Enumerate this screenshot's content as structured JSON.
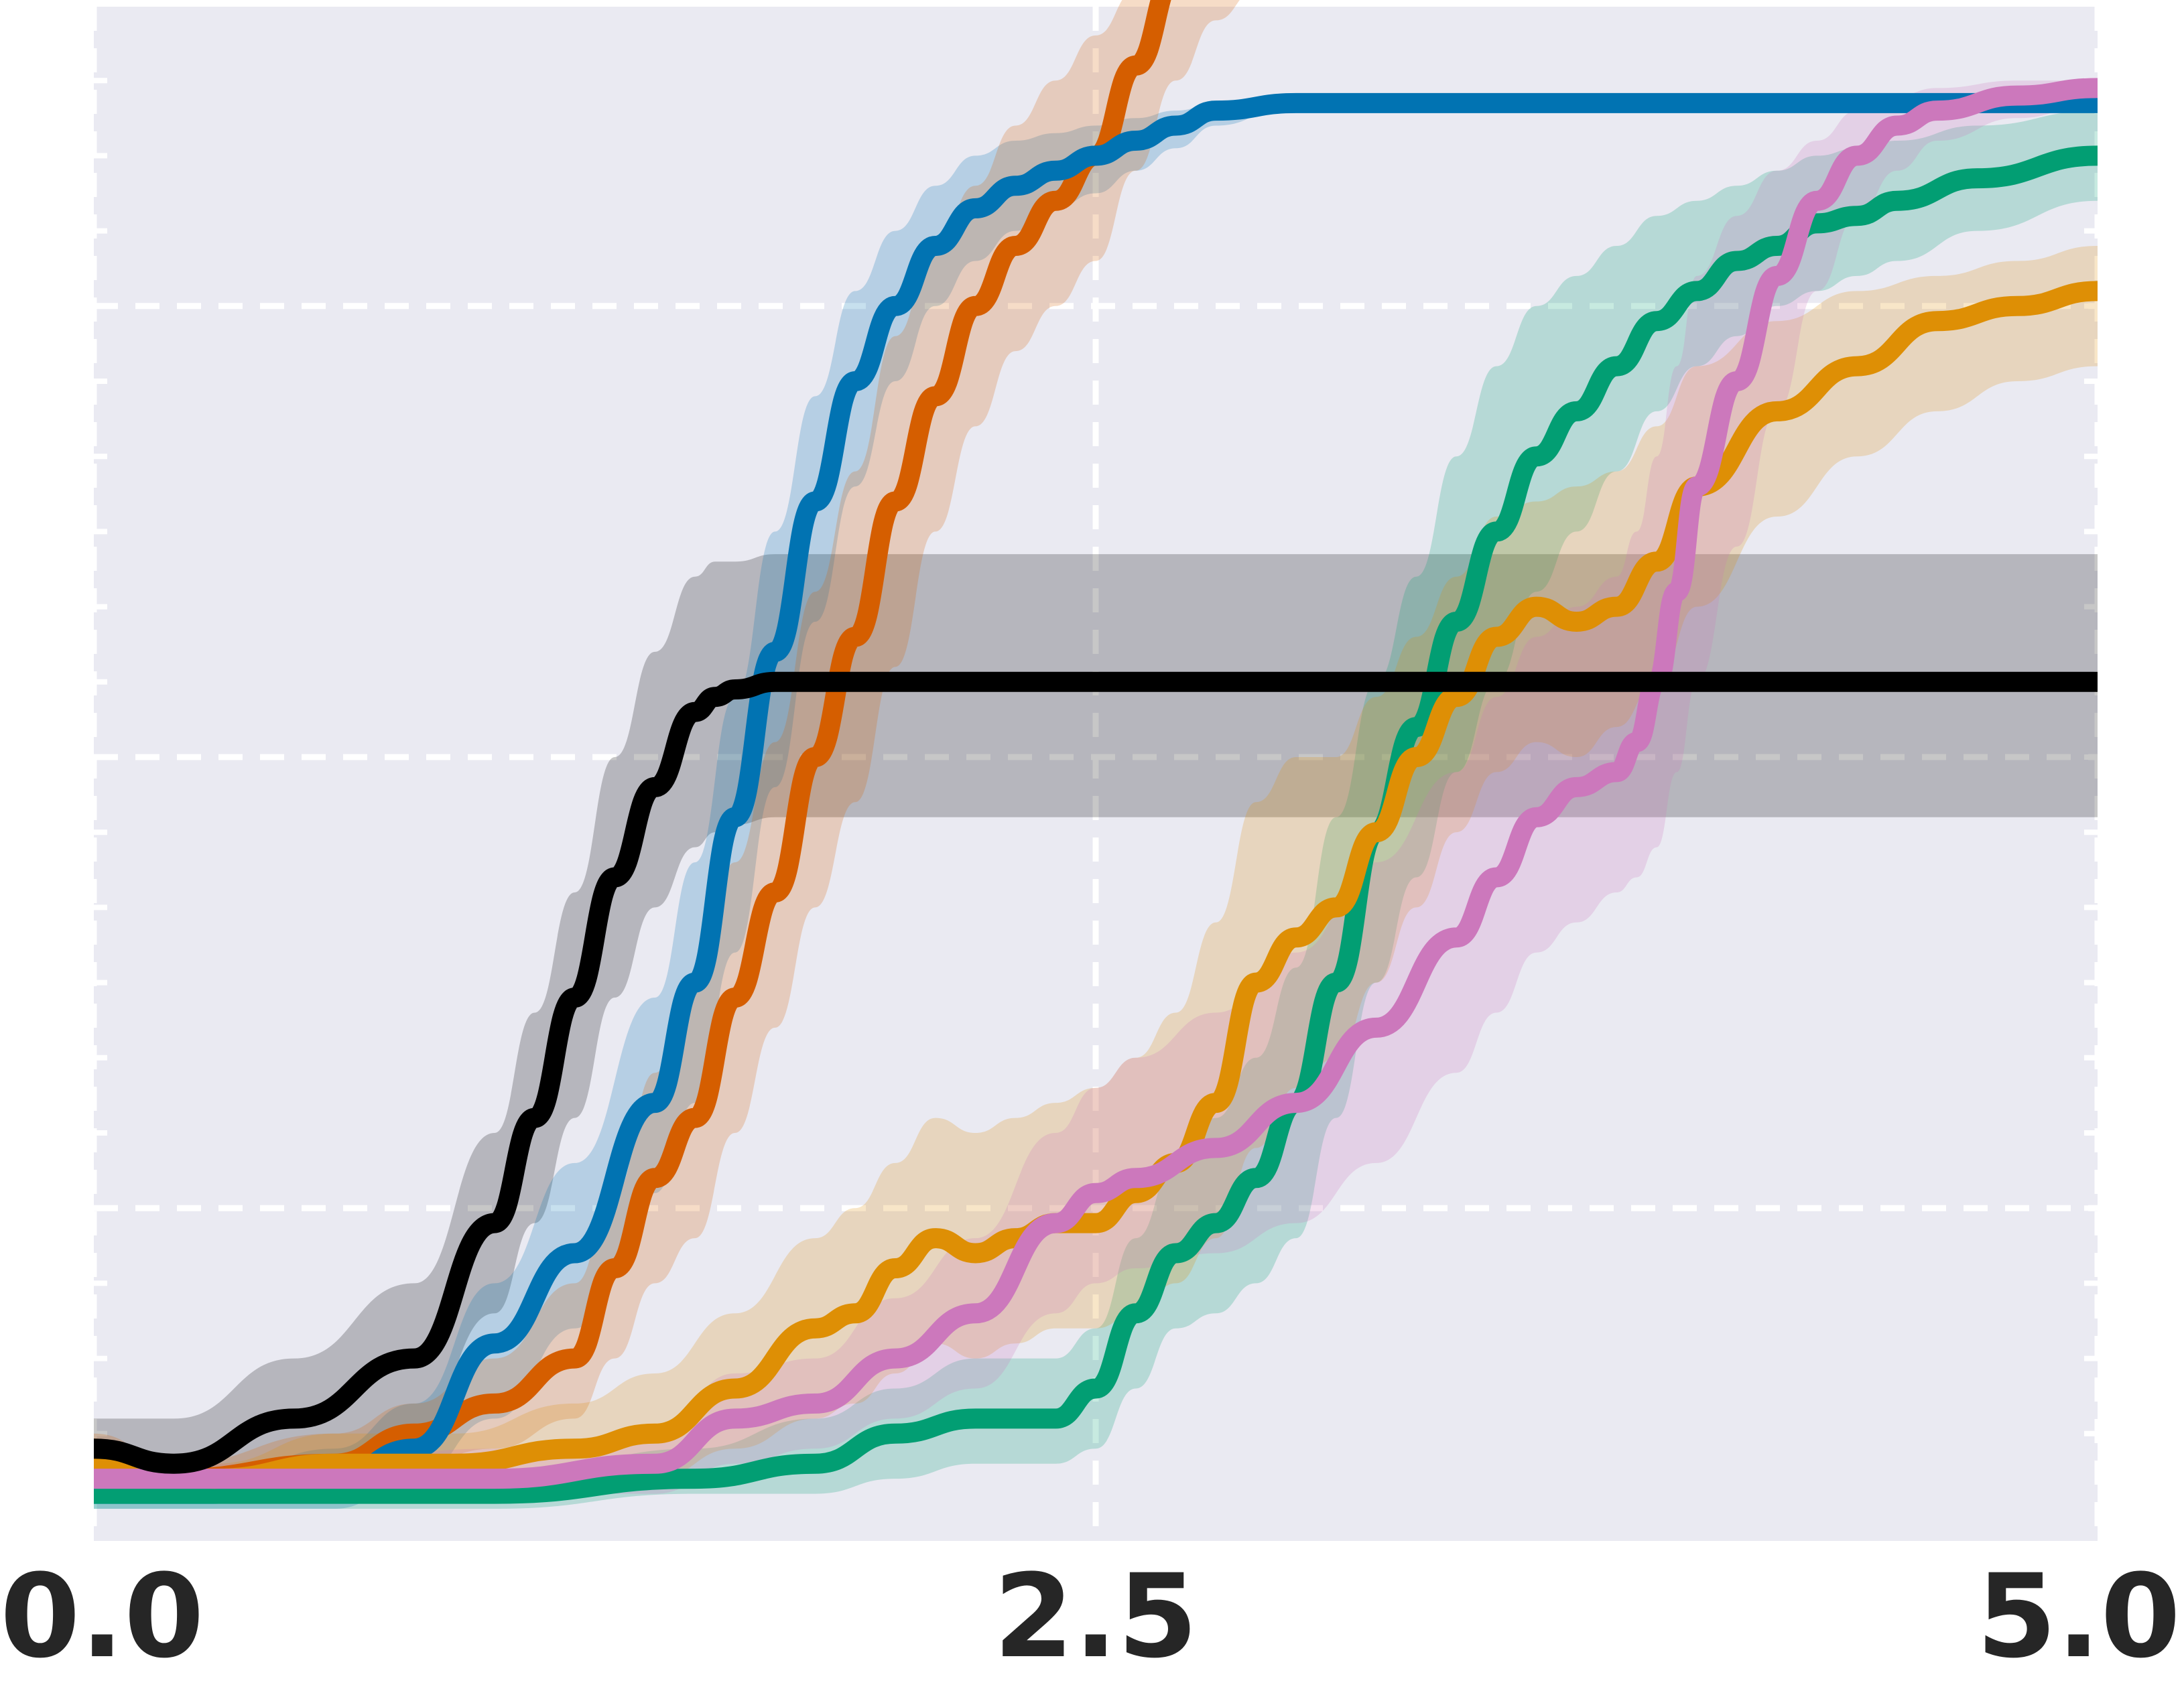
{
  "chart_data": {
    "type": "line",
    "title": "",
    "xlabel": "",
    "ylabel": "",
    "xlim": [
      0.0,
      5.0
    ],
    "ylim": [
      0.0,
      1.0
    ],
    "x_ticks": [
      0.0,
      2.5,
      5.0
    ],
    "x_tick_labels": [
      "0.0",
      "2.5",
      "5.0"
    ],
    "y_gridlines": [
      0.2,
      0.5,
      0.8
    ],
    "grid": true,
    "background": "#eaeaf2",
    "series": [
      {
        "color": "#000000",
        "x": [
          0.0,
          0.2,
          0.5,
          0.8,
          1.0,
          1.1,
          1.2,
          1.3,
          1.4,
          1.5,
          1.55,
          1.6,
          1.7,
          1.8,
          2.0,
          2.5,
          3.0,
          3.5,
          4.0,
          4.5,
          5.0
        ],
        "y": [
          0.04,
          0.03,
          0.06,
          0.1,
          0.19,
          0.26,
          0.34,
          0.42,
          0.48,
          0.53,
          0.54,
          0.545,
          0.55,
          0.55,
          0.55,
          0.55,
          0.55,
          0.55,
          0.55,
          0.55,
          0.55
        ],
        "upper": [
          0.06,
          0.06,
          0.1,
          0.15,
          0.25,
          0.33,
          0.41,
          0.5,
          0.57,
          0.62,
          0.63,
          0.63,
          0.635,
          0.635,
          0.635,
          0.635,
          0.635,
          0.635,
          0.635,
          0.635,
          0.635
        ],
        "lower": [
          0.02,
          0.01,
          0.02,
          0.05,
          0.13,
          0.19,
          0.26,
          0.34,
          0.4,
          0.44,
          0.45,
          0.455,
          0.46,
          0.46,
          0.46,
          0.46,
          0.46,
          0.46,
          0.46,
          0.46,
          0.46
        ]
      },
      {
        "color": "#0173b2",
        "x": [
          0.0,
          0.3,
          0.6,
          0.8,
          1.0,
          1.2,
          1.4,
          1.5,
          1.6,
          1.7,
          1.8,
          1.9,
          2.0,
          2.1,
          2.2,
          2.3,
          2.4,
          2.5,
          2.6,
          2.7,
          2.8,
          3.0,
          3.5,
          4.0,
          4.5,
          5.0
        ],
        "y": [
          0.01,
          0.01,
          0.02,
          0.04,
          0.11,
          0.17,
          0.27,
          0.35,
          0.46,
          0.57,
          0.67,
          0.75,
          0.8,
          0.84,
          0.865,
          0.88,
          0.89,
          0.9,
          0.91,
          0.92,
          0.93,
          0.935,
          0.935,
          0.935,
          0.935,
          0.935
        ],
        "upper": [
          0.02,
          0.02,
          0.04,
          0.07,
          0.15,
          0.23,
          0.34,
          0.43,
          0.54,
          0.65,
          0.74,
          0.81,
          0.85,
          0.88,
          0.9,
          0.91,
          0.915,
          0.92,
          0.925,
          0.93,
          0.935,
          0.935,
          0.935,
          0.935,
          0.935,
          0.935
        ],
        "lower": [
          0.0,
          0.0,
          0.0,
          0.02,
          0.06,
          0.12,
          0.21,
          0.27,
          0.37,
          0.48,
          0.59,
          0.68,
          0.75,
          0.8,
          0.83,
          0.85,
          0.865,
          0.875,
          0.89,
          0.905,
          0.92,
          0.935,
          0.935,
          0.935,
          0.935,
          0.935
        ]
      },
      {
        "color": "#d55e00",
        "x": [
          0.0,
          0.2,
          0.6,
          0.8,
          1.0,
          1.2,
          1.3,
          1.4,
          1.5,
          1.6,
          1.7,
          1.8,
          1.9,
          2.0,
          2.1,
          2.2,
          2.3,
          2.4,
          2.5,
          2.6,
          2.7,
          2.8,
          2.9,
          3.0,
          3.2,
          3.5,
          4.0,
          4.5,
          5.0
        ],
        "y": [
          0.04,
          0.02,
          0.03,
          0.05,
          0.07,
          0.1,
          0.16,
          0.22,
          0.26,
          0.34,
          0.41,
          0.5,
          0.58,
          0.67,
          0.74,
          0.8,
          0.84,
          0.87,
          0.9,
          0.96,
          1.02,
          1.04,
          1.05,
          1.06,
          1.07,
          1.07,
          1.08,
          1.09,
          1.09
        ],
        "upper": [
          0.05,
          0.03,
          0.05,
          0.07,
          0.1,
          0.15,
          0.21,
          0.29,
          0.35,
          0.43,
          0.51,
          0.61,
          0.69,
          0.78,
          0.84,
          0.88,
          0.92,
          0.95,
          0.98,
          1.01,
          1.05,
          1.07,
          1.08,
          1.085,
          1.09,
          1.09,
          1.1,
          1.1,
          1.1
        ],
        "lower": [
          0.02,
          0.01,
          0.01,
          0.03,
          0.04,
          0.06,
          0.1,
          0.15,
          0.18,
          0.25,
          0.32,
          0.4,
          0.47,
          0.56,
          0.65,
          0.72,
          0.77,
          0.8,
          0.83,
          0.89,
          0.95,
          0.99,
          1.01,
          1.03,
          1.04,
          1.05,
          1.06,
          1.07,
          1.08
        ]
      },
      {
        "color": "#029e73",
        "x": [
          0.0,
          0.5,
          1.0,
          1.5,
          1.8,
          2.0,
          2.2,
          2.4,
          2.5,
          2.6,
          2.7,
          2.8,
          2.9,
          3.0,
          3.1,
          3.2,
          3.3,
          3.4,
          3.5,
          3.6,
          3.7,
          3.8,
          3.9,
          4.0,
          4.1,
          4.2,
          4.3,
          4.4,
          4.5,
          4.7,
          5.0
        ],
        "y": [
          0.01,
          0.01,
          0.01,
          0.02,
          0.03,
          0.05,
          0.06,
          0.06,
          0.08,
          0.13,
          0.17,
          0.19,
          0.22,
          0.27,
          0.35,
          0.45,
          0.52,
          0.59,
          0.65,
          0.7,
          0.73,
          0.76,
          0.79,
          0.81,
          0.83,
          0.84,
          0.855,
          0.86,
          0.87,
          0.885,
          0.9
        ],
        "upper": [
          0.02,
          0.02,
          0.02,
          0.04,
          0.06,
          0.08,
          0.1,
          0.1,
          0.12,
          0.18,
          0.23,
          0.26,
          0.3,
          0.36,
          0.46,
          0.55,
          0.62,
          0.7,
          0.76,
          0.8,
          0.82,
          0.84,
          0.86,
          0.87,
          0.88,
          0.89,
          0.9,
          0.905,
          0.91,
          0.92,
          0.93
        ],
        "lower": [
          0.0,
          0.0,
          0.0,
          0.01,
          0.01,
          0.02,
          0.03,
          0.03,
          0.04,
          0.08,
          0.12,
          0.13,
          0.15,
          0.18,
          0.26,
          0.35,
          0.42,
          0.49,
          0.55,
          0.61,
          0.65,
          0.69,
          0.73,
          0.76,
          0.78,
          0.8,
          0.81,
          0.82,
          0.83,
          0.85,
          0.87
        ]
      },
      {
        "color": "#de8f05",
        "x": [
          0.0,
          0.3,
          0.6,
          0.9,
          1.2,
          1.4,
          1.6,
          1.8,
          1.9,
          2.0,
          2.1,
          2.2,
          2.3,
          2.4,
          2.5,
          2.6,
          2.7,
          2.8,
          2.9,
          3.0,
          3.1,
          3.2,
          3.3,
          3.4,
          3.5,
          3.6,
          3.7,
          3.8,
          3.9,
          4.0,
          4.2,
          4.4,
          4.6,
          4.8,
          5.0
        ],
        "y": [
          0.03,
          0.02,
          0.03,
          0.03,
          0.04,
          0.05,
          0.08,
          0.12,
          0.13,
          0.16,
          0.18,
          0.17,
          0.18,
          0.19,
          0.19,
          0.21,
          0.23,
          0.27,
          0.35,
          0.38,
          0.4,
          0.45,
          0.5,
          0.54,
          0.58,
          0.6,
          0.59,
          0.6,
          0.63,
          0.68,
          0.73,
          0.76,
          0.79,
          0.8,
          0.81
        ],
        "upper": [
          0.04,
          0.03,
          0.05,
          0.05,
          0.07,
          0.09,
          0.13,
          0.18,
          0.2,
          0.23,
          0.26,
          0.25,
          0.26,
          0.27,
          0.28,
          0.3,
          0.33,
          0.39,
          0.47,
          0.5,
          0.5,
          0.54,
          0.58,
          0.62,
          0.66,
          0.67,
          0.68,
          0.69,
          0.72,
          0.76,
          0.79,
          0.81,
          0.82,
          0.83,
          0.84
        ],
        "lower": [
          0.02,
          0.01,
          0.01,
          0.01,
          0.02,
          0.02,
          0.04,
          0.06,
          0.07,
          0.09,
          0.11,
          0.1,
          0.11,
          0.12,
          0.12,
          0.13,
          0.15,
          0.18,
          0.24,
          0.28,
          0.3,
          0.35,
          0.4,
          0.45,
          0.49,
          0.51,
          0.5,
          0.52,
          0.55,
          0.6,
          0.66,
          0.7,
          0.73,
          0.75,
          0.76
        ]
      },
      {
        "color": "#cc78bc",
        "x": [
          0.0,
          0.5,
          1.0,
          1.4,
          1.6,
          1.8,
          2.0,
          2.2,
          2.4,
          2.5,
          2.6,
          2.8,
          3.0,
          3.2,
          3.4,
          3.5,
          3.6,
          3.7,
          3.8,
          3.85,
          3.9,
          3.95,
          4.0,
          4.1,
          4.2,
          4.3,
          4.4,
          4.5,
          4.6,
          4.8,
          5.0
        ],
        "y": [
          0.02,
          0.02,
          0.02,
          0.03,
          0.06,
          0.07,
          0.1,
          0.13,
          0.19,
          0.21,
          0.22,
          0.24,
          0.27,
          0.32,
          0.38,
          0.42,
          0.46,
          0.48,
          0.49,
          0.51,
          0.55,
          0.61,
          0.68,
          0.75,
          0.82,
          0.87,
          0.9,
          0.92,
          0.93,
          0.94,
          0.945
        ],
        "upper": [
          0.03,
          0.03,
          0.04,
          0.05,
          0.09,
          0.1,
          0.14,
          0.18,
          0.25,
          0.28,
          0.3,
          0.33,
          0.37,
          0.43,
          0.49,
          0.54,
          0.58,
          0.6,
          0.62,
          0.65,
          0.7,
          0.76,
          0.82,
          0.86,
          0.89,
          0.91,
          0.93,
          0.94,
          0.945,
          0.95,
          0.95
        ],
        "lower": [
          0.01,
          0.01,
          0.01,
          0.01,
          0.03,
          0.04,
          0.06,
          0.08,
          0.13,
          0.15,
          0.16,
          0.17,
          0.19,
          0.23,
          0.29,
          0.33,
          0.37,
          0.39,
          0.41,
          0.42,
          0.44,
          0.49,
          0.55,
          0.64,
          0.73,
          0.81,
          0.86,
          0.89,
          0.91,
          0.925,
          0.935
        ]
      }
    ]
  }
}
